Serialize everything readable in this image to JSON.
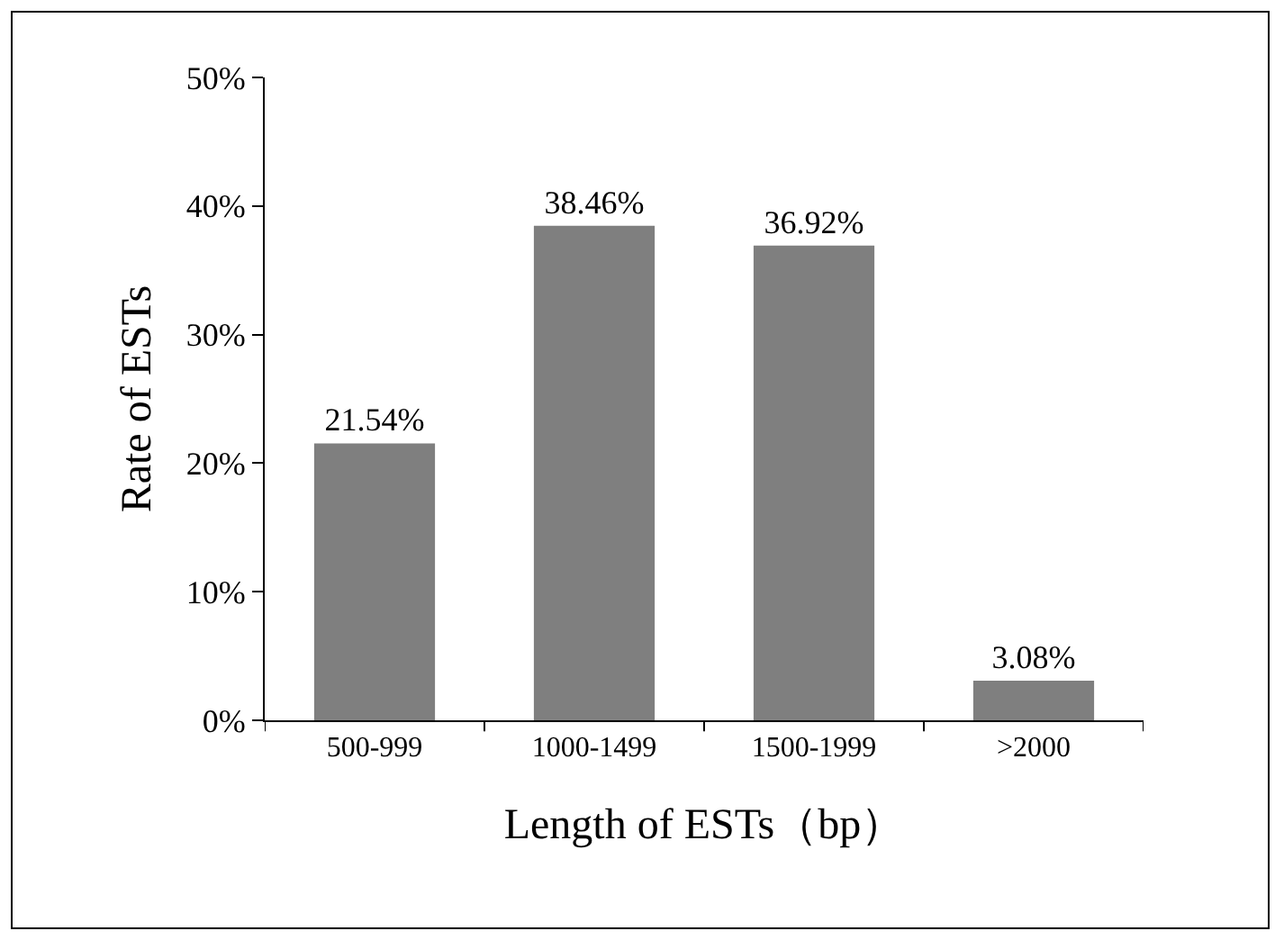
{
  "chart_data": {
    "type": "bar",
    "xlabel": "Length of ESTs（bp）",
    "ylabel": "Rate of ESTs",
    "categories": [
      "500-999",
      "1000-1499",
      "1500-1999",
      ">2000"
    ],
    "values": [
      21.54,
      38.46,
      36.92,
      3.08
    ],
    "value_labels": [
      "21.54%",
      "38.46%",
      "36.92%",
      "3.08%"
    ],
    "color": "#7f7f7f",
    "ylim": [
      0,
      50
    ],
    "yticks": [
      {
        "value": 0,
        "label": "0%"
      },
      {
        "value": 10,
        "label": "10%"
      },
      {
        "value": 20,
        "label": "20%"
      },
      {
        "value": 30,
        "label": "30%"
      },
      {
        "value": 40,
        "label": "40%"
      },
      {
        "value": 50,
        "label": "50%"
      }
    ],
    "grid": false
  }
}
